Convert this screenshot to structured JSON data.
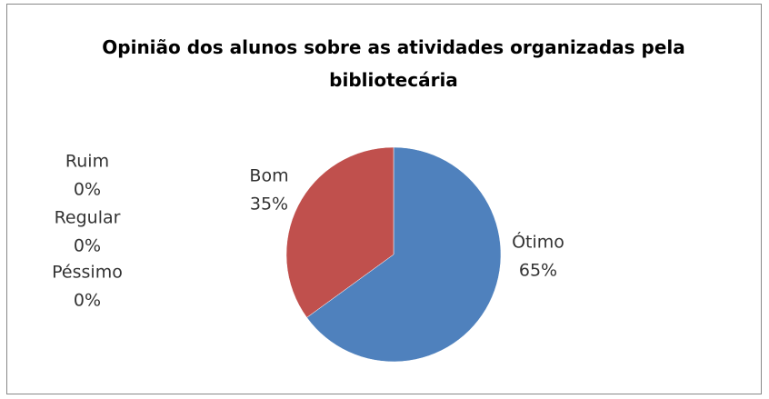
{
  "chart_data": {
    "type": "pie",
    "title": "Opinião dos alunos sobre as atividades organizadas pela bibliotecária",
    "categories": [
      "Ótimo",
      "Bom",
      "Ruim",
      "Regular",
      "Péssimo"
    ],
    "values": [
      65,
      35,
      0,
      0,
      0
    ],
    "value_labels": [
      "65%",
      "35%",
      "0%",
      "0%",
      "0%"
    ],
    "colors": [
      "#4f81bd",
      "#c0504d",
      "#9bbb59",
      "#8064a2",
      "#4bacc6"
    ]
  }
}
